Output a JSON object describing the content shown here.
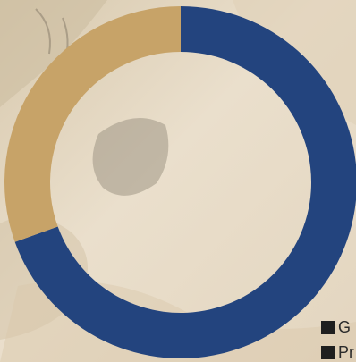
{
  "background": {
    "description_colors": {
      "base": "#ede3d3",
      "rock_light": "#e9dcc6",
      "rock_mid": "#d7c5a8",
      "shadow": "#9e9585"
    },
    "icon": "rocky-terrain-photo"
  },
  "colors": {
    "navy": "#23447e",
    "gold": "#c7a368",
    "legend_text": "#2b2b2b"
  },
  "chart_data": {
    "type": "pie",
    "donut": true,
    "start_angle_deg": 0,
    "direction": "clockwise",
    "slices": [
      {
        "label": "G",
        "value": 69.5,
        "color": "#23447e"
      },
      {
        "label": "Pr",
        "value": 30.5,
        "color": "#c7a368"
      }
    ],
    "legend": {
      "placement": "bottom-right",
      "entries": [
        "G",
        "Pr"
      ]
    }
  },
  "legend": {
    "items": [
      {
        "label": "G",
        "swatch_color": "#1f1f1f"
      },
      {
        "label": "Pr",
        "swatch_color": "#1f1f1f"
      }
    ]
  }
}
